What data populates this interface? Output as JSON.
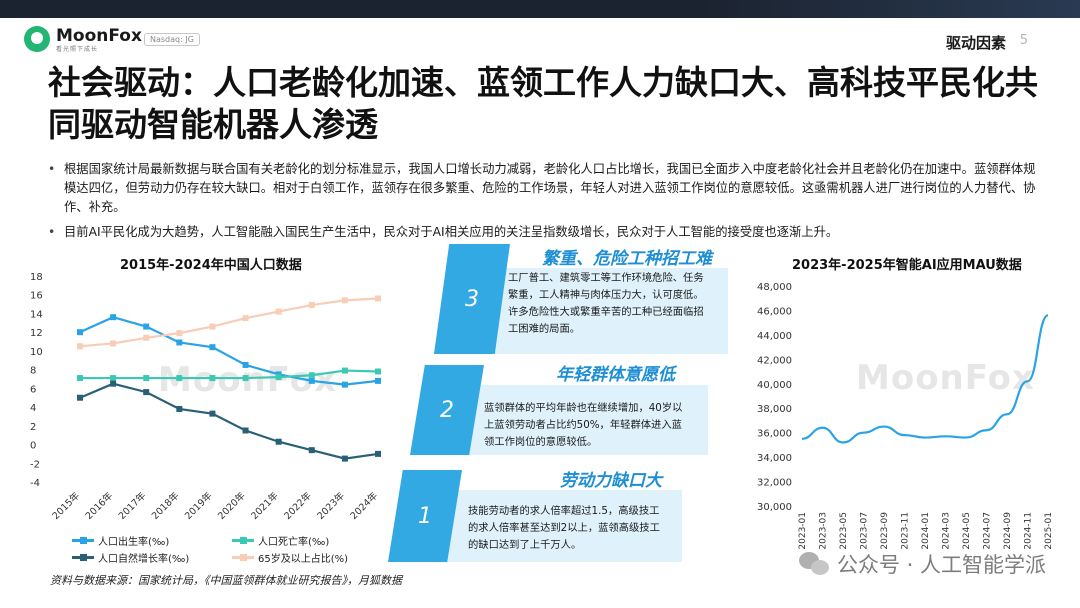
{
  "header": {
    "logo_name": "MoonFox",
    "logo_sub": "看光照下成长",
    "nasdaq": "Nasdaq: JG",
    "section": "驱动因素",
    "page_number": "5"
  },
  "title": "社会驱动：人口老龄化加速、蓝领工作人力缺口大、高科技平民化共同驱动智能机器人渗透",
  "bullets": [
    "根据国家统计局最新数据与联合国有关老龄化的划分标准显示，我国人口增长动力减弱，老龄化人口占比增长，我国已全面步入中度老龄化社会并且老龄化仍在加速中。蓝领群体规模达四亿，但劳动力仍存在较大缺口。相对于白领工作，蓝领存在很多繁重、危险的工作场景，年轻人对进入蓝领工作岗位的意愿较低。这亟需机器人进厂进行岗位的人力替代、协作、补充。",
    "目前AI平民化成为大趋势，人工智能融入国民生产生活中，民众对于AI相关应用的关注呈指数级增长，民众对于人工智能的接受度也逐渐上升。"
  ],
  "left_chart_title": "2015年-2024年中国人口数据",
  "right_chart_title": "2023年-2025年智能AI应用MAU数据",
  "source": "资料与数据来源：国家统计局，《中国蓝领群体就业研究报告》，月狐数据",
  "background_watermark": "MoonFox",
  "watermark": "公众号 · 人工智能学派",
  "panels": [
    {
      "number": "3",
      "title": "繁重、危险工种招工难",
      "text": "工厂普工、建筑零工等工作环境危险、任务繁重，工人精神与肉体压力大，认可度低。许多危险性大或繁重辛苦的工种已经面临招工困难的局面。"
    },
    {
      "number": "2",
      "title": "年轻群体意愿低",
      "text": "蓝领群体的平均年龄也在继续增加，40岁以上蓝领劳动者占比约50%，年轻群体进入蓝领工作岗位的意愿较低。"
    },
    {
      "number": "1",
      "title": "劳动力缺口大",
      "text": "技能劳动者的求人倍率超过1.5，高级技工的求人倍率甚至达到2以上，蓝领高级技工的缺口达到了上千万人。"
    }
  ],
  "chart_data": [
    {
      "type": "line",
      "title": "2015年-2024年中国人口数据",
      "categories": [
        "2015年",
        "2016年",
        "2017年",
        "2018年",
        "2019年",
        "2020年",
        "2021年",
        "2022年",
        "2023年",
        "2024年"
      ],
      "ylim": [
        -4,
        18
      ],
      "yticks": [
        -4,
        -2,
        0,
        2,
        4,
        6,
        8,
        10,
        12,
        14,
        16,
        18
      ],
      "grid": false,
      "legend_position": "bottom",
      "series": [
        {
          "name": "人口出生率(‰)",
          "color": "#29a3e6",
          "values": [
            12.0,
            13.6,
            12.6,
            10.9,
            10.4,
            8.5,
            7.5,
            6.8,
            6.4,
            6.8
          ]
        },
        {
          "name": "人口死亡率(‰)",
          "color": "#3cc9b4",
          "values": [
            7.1,
            7.1,
            7.1,
            7.1,
            7.1,
            7.1,
            7.2,
            7.4,
            7.9,
            7.8
          ]
        },
        {
          "name": "人口自然增长率(‰)",
          "color": "#2a6077",
          "values": [
            5.0,
            6.5,
            5.6,
            3.8,
            3.3,
            1.5,
            0.3,
            -0.6,
            -1.5,
            -1.0
          ]
        },
        {
          "name": "65岁及以上占比(%)",
          "color": "#f8cdb6",
          "values": [
            10.5,
            10.8,
            11.4,
            11.9,
            12.6,
            13.5,
            14.2,
            14.9,
            15.4,
            15.6
          ]
        }
      ]
    },
    {
      "type": "line",
      "title": "2023年-2025年智能AI应用MAU数据",
      "categories": [
        "2023-01",
        "2023-03",
        "2023-05",
        "2023-07",
        "2023-09",
        "2023-11",
        "2024-01",
        "2024-03",
        "2024-05",
        "2024-07",
        "2024-09",
        "2024-11",
        "2025-01"
      ],
      "ylim": [
        30000,
        48000
      ],
      "yticks": [
        "30,000",
        "32,000",
        "34,000",
        "36,000",
        "38,000",
        "40,000",
        "42,000",
        "44,000",
        "46,000",
        "48,000"
      ],
      "grid": false,
      "series": [
        {
          "name": "",
          "color": "#29a3e6",
          "values": [
            35500,
            36400,
            35200,
            36000,
            36500,
            35800,
            35600,
            35700,
            35600,
            36200,
            37500,
            40200,
            45600
          ]
        }
      ]
    }
  ],
  "colors": {
    "accent_blue": "#33a9e4",
    "panel_bg": "#dff1fb",
    "panel_title": "#1e8fd5"
  }
}
